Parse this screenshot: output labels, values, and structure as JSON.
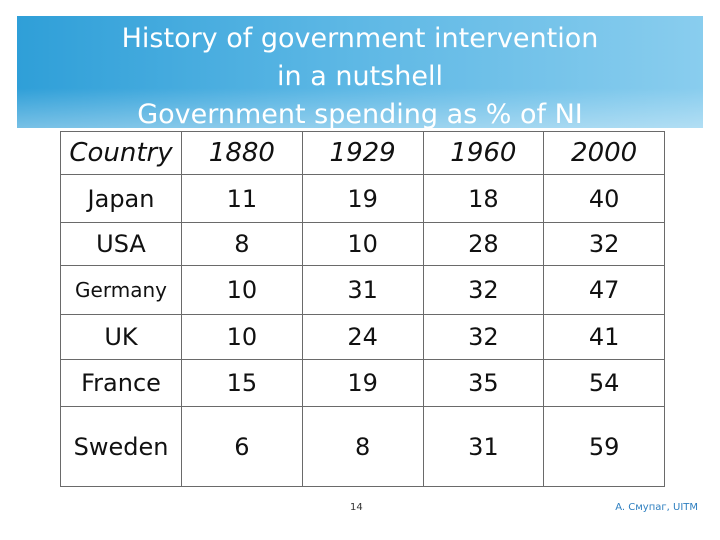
{
  "title": {
    "line1": "History of government intervention",
    "line2": "in a nutshell",
    "line3": "Government spending as % of NI"
  },
  "table": {
    "headers": [
      "Country",
      "1880",
      "1929",
      "1960",
      "2000"
    ],
    "rows": [
      {
        "country": "Japan",
        "values": [
          "11",
          "19",
          "18",
          "40"
        ]
      },
      {
        "country": "USA",
        "values": [
          "8",
          "10",
          "28",
          "32"
        ]
      },
      {
        "country": "Germany",
        "values": [
          "10",
          "31",
          "32",
          "47"
        ]
      },
      {
        "country": "UK",
        "values": [
          "10",
          "24",
          "32",
          "41"
        ]
      },
      {
        "country": "France",
        "values": [
          "15",
          "19",
          "35",
          "54"
        ]
      },
      {
        "country": "Sweden",
        "values": [
          "6",
          "8",
          "31",
          "59"
        ]
      }
    ]
  },
  "footer": {
    "page_number": "14",
    "credit": "A. Смупаг, UITM"
  },
  "colors": {
    "header_gradient_start": "#2f9fd8",
    "header_gradient_end": "#89cdee",
    "credit_text": "#2e7fc0"
  }
}
